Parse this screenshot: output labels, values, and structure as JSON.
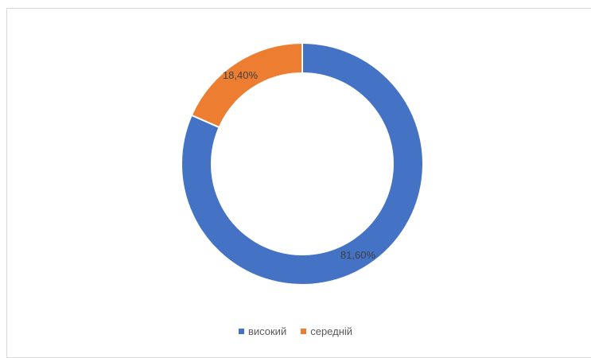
{
  "chart_data": {
    "type": "pie",
    "variant": "doughnut",
    "title": "",
    "categories": [
      "високий",
      "середній"
    ],
    "values": [
      81.6,
      18.4
    ],
    "data_labels": [
      "81,60%",
      "18,40%"
    ],
    "colors": [
      "#4472C4",
      "#ED7D31"
    ],
    "legend_position": "bottom",
    "start_angle": "12 o'clock, clockwise"
  },
  "legend": {
    "items": [
      {
        "label": "високий",
        "color": "#4472C4"
      },
      {
        "label": "середній",
        "color": "#ED7D31"
      }
    ]
  }
}
